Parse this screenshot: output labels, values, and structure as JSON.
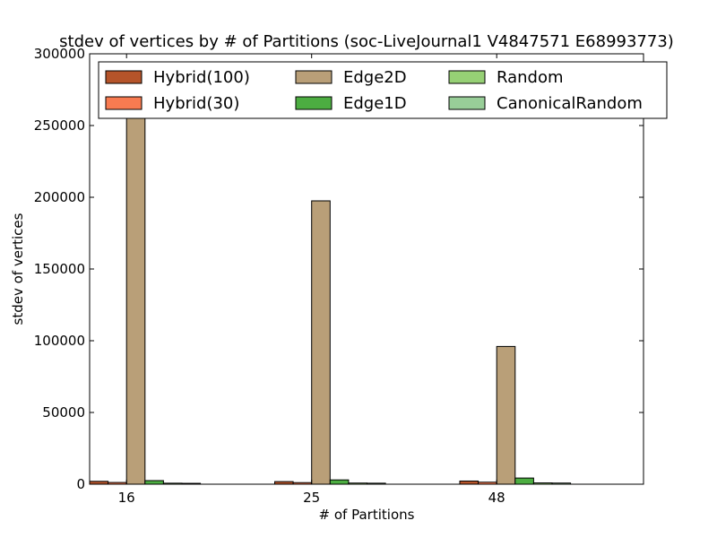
{
  "chart_data": {
    "type": "bar",
    "title": "stdev of vertices by # of Partitions (soc-LiveJournal1 V4847571 E68993773)",
    "xlabel": "# of Partitions",
    "ylabel": "stdev of vertices",
    "ylim": [
      0,
      300000
    ],
    "yticks": [
      0,
      50000,
      100000,
      150000,
      200000,
      250000,
      300000
    ],
    "categories": [
      "16",
      "25",
      "48"
    ],
    "grid": false,
    "legend": {
      "position": "top",
      "columns": 3
    },
    "series": [
      {
        "name": "Hybrid(100)",
        "color": "#b5542a",
        "values": [
          2000,
          1800,
          2200
        ]
      },
      {
        "name": "Hybrid(30)",
        "color": "#f87b51",
        "values": [
          1200,
          1100,
          1400
        ]
      },
      {
        "name": "Edge2D",
        "color": "#b99f78",
        "values": [
          262000,
          197500,
          96000
        ]
      },
      {
        "name": "Edge1D",
        "color": "#4cad41",
        "values": [
          2500,
          3000,
          4300
        ]
      },
      {
        "name": "Random",
        "color": "#96d075",
        "values": [
          700,
          800,
          900
        ]
      },
      {
        "name": "CanonicalRandom",
        "color": "#98ce98",
        "values": [
          600,
          700,
          800
        ]
      }
    ]
  }
}
